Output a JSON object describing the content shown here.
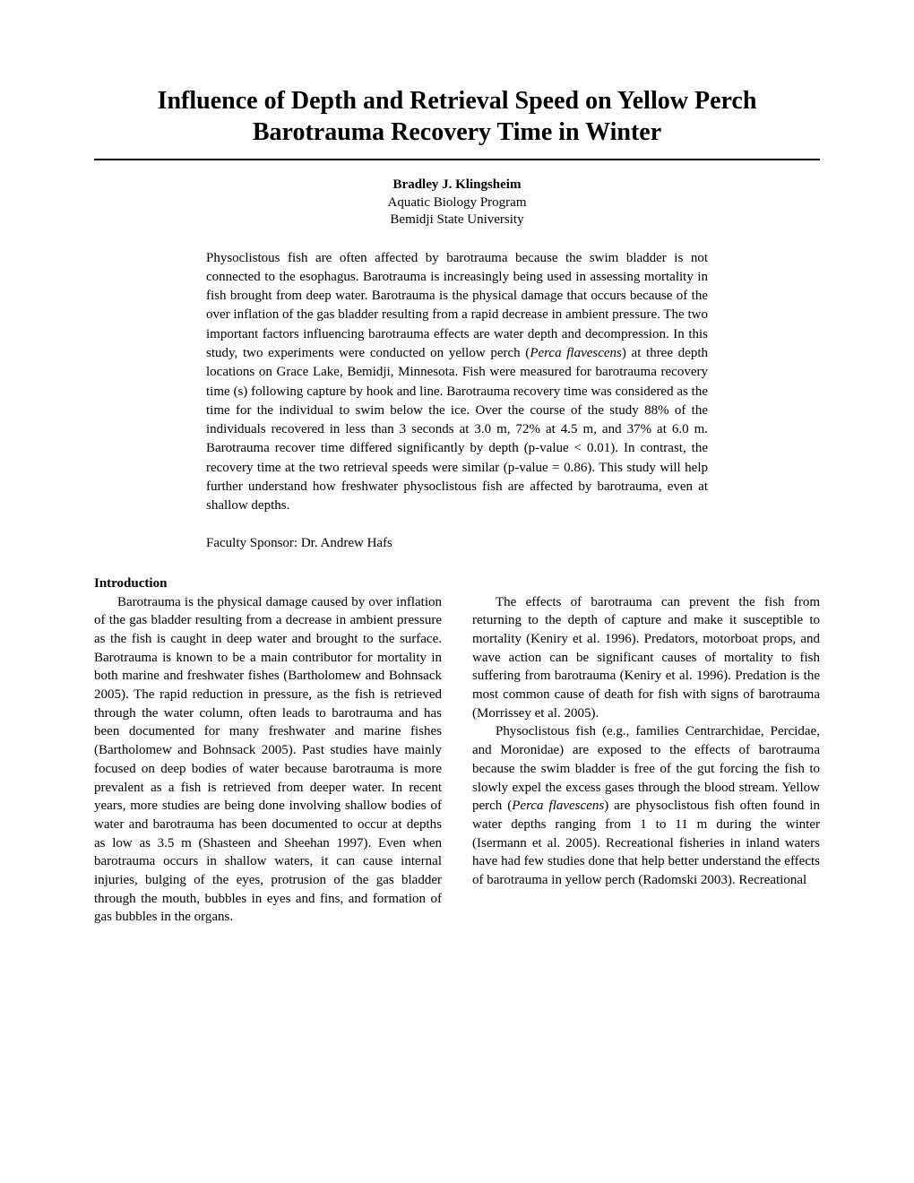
{
  "title_line1": "Influence of Depth and Retrieval Speed on Yellow Perch",
  "title_line2": "Barotrauma Recovery Time in Winter",
  "author": {
    "name": "Bradley J. Klingsheim",
    "program": "Aquatic Biology Program",
    "university": "Bemidji State University"
  },
  "abstract": {
    "p1a": "Physoclistous fish are often affected by barotrauma because the swim bladder is not connected to the esophagus. Barotrauma is increasingly being used in assessing mortality in fish brought from deep water. Barotrauma is the physical damage that occurs because of the over inflation of the gas bladder resulting from a rapid decrease in ambient pressure. The two important factors influencing barotrauma effects are water depth and decompression. In this study, two experiments were conducted on yellow perch (",
    "species": "Perca flavescens",
    "p1b": ") at three depth locations on Grace Lake, Bemidji, Minnesota. Fish were measured for barotrauma recovery time (s) following capture by hook and line. Barotrauma recovery time was considered as the time for the individual to swim below the ice. Over the course of the study 88% of the individuals recovered in less than 3 seconds at 3.0 m, 72% at 4.5 m, and 37% at 6.0 m. Barotrauma recover time differed significantly by depth (p-value < 0.01). In contrast, the recovery time at the two retrieval speeds were similar (p-value = 0.86). This study will help further understand how freshwater physoclistous fish are affected by barotrauma, even at shallow depths."
  },
  "sponsor": "Faculty Sponsor: Dr. Andrew Hafs",
  "section_heading": "Introduction",
  "left_col": {
    "p1": "Barotrauma is the physical damage caused by over inflation of the gas bladder resulting from a decrease in ambient pressure as the fish is caught in deep water and brought to the surface. Barotrauma is known to be a main contributor for mortality in both marine and freshwater fishes (Bartholomew and Bohnsack 2005). The rapid reduction in pressure, as the fish is retrieved through the water column, often leads to barotrauma and has been documented for many freshwater and marine fishes (Bartholomew and Bohnsack 2005). Past studies have mainly focused on deep bodies of water because barotrauma is more prevalent as a fish is retrieved from deeper water. In recent years, more studies are being done involving shallow bodies of water and barotrauma has been documented to occur at depths as low as 3.5 m (Shasteen and Sheehan 1997). Even when barotrauma occurs in shallow waters, it can cause internal injuries, bulging of the eyes, protrusion of the gas bladder through the mouth, bubbles in eyes and fins, and formation of gas bubbles in the organs."
  },
  "right_col": {
    "p1": "The effects of barotrauma can prevent the fish from returning to the depth of capture and make it susceptible to mortality (Keniry et al. 1996). Predators, motorboat props, and wave action can be significant causes of mortality to fish suffering from barotrauma (Keniry et al. 1996). Predation is the most common cause of death for fish with signs of barotrauma (Morrissey et al. 2005).",
    "p2a": "Physoclistous fish (e.g., families Centrarchidae, Percidae, and Moronidae) are exposed to the effects of barotrauma because the swim bladder is free of the gut forcing the fish to slowly expel the excess gases through the blood stream. Yellow perch (",
    "species": "Perca flavescens",
    "p2b": ") are physoclistous fish often found in water depths ranging from 1 to 11 m during the winter (Isermann et al. 2005). Recreational fisheries in inland waters have had few studies done that help better understand the effects of barotrauma in yellow perch (Radomski 2003). Recreational"
  }
}
